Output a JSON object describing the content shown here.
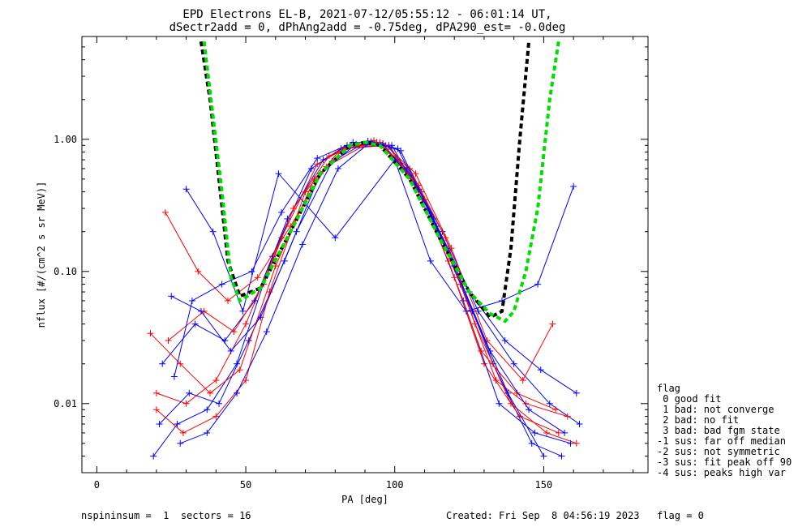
{
  "chart_data": {
    "type": "line",
    "title": "EPD Electrons EL-B, 2021-07-12/05:55:12 - 06:01:14 UT,",
    "subtitle": "dSectr2add = 0, dPhAng2add = -0.75deg, dPA290_est=  -0.0deg",
    "xlabel": "PA [deg]",
    "ylabel": "nflux [#/(cm^2 s sr MeV)]",
    "xlim": [
      -5,
      185
    ],
    "ylim": [
      0.003,
      6.0
    ],
    "yscale": "log",
    "x_ticks": [
      "0",
      "50",
      "100",
      "150"
    ],
    "x_tick_values": [
      0,
      50,
      100,
      150
    ],
    "y_ticks": [
      "0.01",
      "0.10",
      "1.00"
    ],
    "y_tick_values": [
      0.01,
      0.1,
      1.0
    ],
    "legend_title": "flag",
    "legend": [
      " 0 good fit",
      " 1 bad: not converge",
      " 2 bad: no fit",
      " 3 bad: bad fgm state",
      "-1 sus: far off median",
      "-2 sus: not symmetric",
      "-3 sus: fit peak off 90",
      "-4 sus: peaks high var"
    ],
    "footer_left": "nspininsum =  1  sectors = 16",
    "footer_right": "Created: Fri Sep  8 04:56:19 2023   flag = 0",
    "fit_curves": [
      {
        "color": "#000000",
        "style": "dashed",
        "x": [
          35,
          38,
          41,
          44,
          48,
          55,
          65,
          75,
          85,
          90,
          95,
          105,
          115,
          125,
          132,
          136,
          139,
          142,
          145
        ],
        "y": [
          5.5,
          2.0,
          0.5,
          0.12,
          0.065,
          0.075,
          0.2,
          0.55,
          0.9,
          0.95,
          0.9,
          0.5,
          0.18,
          0.07,
          0.045,
          0.05,
          0.15,
          1.0,
          5.5
        ]
      },
      {
        "color": "#00dd00",
        "style": "dashed",
        "x": [
          36,
          39,
          42,
          45,
          48,
          55,
          65,
          75,
          85,
          90,
          95,
          105,
          115,
          125,
          132,
          137,
          140,
          144,
          148,
          152,
          155
        ],
        "y": [
          5.5,
          1.5,
          0.4,
          0.09,
          0.06,
          0.075,
          0.2,
          0.55,
          0.9,
          0.95,
          0.9,
          0.5,
          0.18,
          0.07,
          0.048,
          0.042,
          0.05,
          0.1,
          0.3,
          2.0,
          5.5
        ]
      }
    ],
    "data_series": [
      {
        "color": "#0000ff",
        "markers": "plus",
        "x": [
          19,
          27,
          37,
          47,
          59,
          72,
          82,
          98,
          109,
          121,
          133,
          146,
          156
        ],
        "y": [
          0.004,
          0.007,
          0.009,
          0.02,
          0.13,
          0.6,
          0.85,
          0.9,
          0.4,
          0.1,
          0.02,
          0.005,
          0.004
        ]
      },
      {
        "color": "#ff0000",
        "markers": "plus",
        "x": [
          20,
          30,
          40,
          50,
          62,
          74,
          85,
          96,
          108,
          120,
          130,
          142,
          155
        ],
        "y": [
          0.012,
          0.01,
          0.015,
          0.04,
          0.18,
          0.65,
          0.9,
          0.92,
          0.45,
          0.09,
          0.02,
          0.008,
          0.006
        ]
      },
      {
        "color": "#0000ff",
        "markers": "plus",
        "x": [
          22,
          33,
          43,
          53,
          64,
          76,
          86,
          94,
          104,
          116,
          128,
          140,
          152,
          162
        ],
        "y": [
          0.02,
          0.04,
          0.03,
          0.06,
          0.25,
          0.7,
          0.95,
          0.95,
          0.6,
          0.2,
          0.05,
          0.02,
          0.01,
          0.007
        ]
      },
      {
        "color": "#ff0000",
        "markers": "plus",
        "x": [
          24,
          36,
          46,
          56,
          66,
          78,
          88,
          98,
          110,
          122,
          134,
          144,
          158
        ],
        "y": [
          0.03,
          0.05,
          0.035,
          0.08,
          0.3,
          0.75,
          0.9,
          0.88,
          0.35,
          0.08,
          0.015,
          0.01,
          0.008
        ]
      },
      {
        "color": "#0000ff",
        "markers": "plus",
        "x": [
          30,
          39,
          49,
          61,
          80,
          100,
          112,
          124,
          136,
          148,
          160
        ],
        "y": [
          0.42,
          0.2,
          0.05,
          0.55,
          0.18,
          0.7,
          0.12,
          0.05,
          0.06,
          0.08,
          0.44
        ]
      },
      {
        "color": "#0000ff",
        "markers": "plus",
        "x": [
          21,
          31,
          41,
          51,
          63,
          75,
          87,
          99,
          111,
          123,
          135,
          147,
          159
        ],
        "y": [
          0.007,
          0.012,
          0.01,
          0.03,
          0.12,
          0.55,
          0.92,
          0.9,
          0.3,
          0.06,
          0.01,
          0.006,
          0.005
        ]
      },
      {
        "color": "#ff0000",
        "markers": "plus",
        "x": [
          23,
          34,
          44,
          54,
          65,
          77,
          89,
          97,
          107,
          119,
          131,
          143,
          153
        ],
        "y": [
          0.28,
          0.1,
          0.06,
          0.09,
          0.22,
          0.62,
          0.88,
          0.9,
          0.55,
          0.15,
          0.03,
          0.015,
          0.04
        ]
      },
      {
        "color": "#0000ff",
        "markers": "plus",
        "x": [
          25,
          35,
          45,
          55,
          67,
          79,
          91,
          101,
          113,
          125,
          137,
          149,
          161
        ],
        "y": [
          0.065,
          0.05,
          0.025,
          0.045,
          0.2,
          0.68,
          0.97,
          0.85,
          0.25,
          0.07,
          0.03,
          0.018,
          0.012
        ]
      },
      {
        "color": "#ff0000",
        "markers": "plus",
        "x": [
          18,
          28,
          38,
          48,
          60,
          73,
          83,
          95,
          106,
          118,
          129,
          141,
          154
        ],
        "y": [
          0.034,
          0.02,
          0.012,
          0.018,
          0.11,
          0.5,
          0.85,
          0.95,
          0.5,
          0.12,
          0.025,
          0.012,
          0.009
        ]
      },
      {
        "color": "#0000ff",
        "markers": "plus",
        "x": [
          26,
          32,
          42,
          52,
          62,
          74,
          84,
          96,
          108,
          120,
          132,
          145,
          157
        ],
        "y": [
          0.016,
          0.06,
          0.08,
          0.1,
          0.28,
          0.72,
          0.9,
          0.93,
          0.42,
          0.11,
          0.025,
          0.009,
          0.006
        ]
      },
      {
        "color": "#ff0000",
        "markers": "plus",
        "x": [
          20,
          29,
          40,
          50,
          58,
          70,
          81,
          93,
          105,
          117,
          127,
          139,
          151,
          161
        ],
        "y": [
          0.009,
          0.006,
          0.008,
          0.015,
          0.07,
          0.4,
          0.8,
          0.98,
          0.6,
          0.18,
          0.04,
          0.01,
          0.006,
          0.005
        ]
      },
      {
        "color": "#0000ff",
        "markers": "plus",
        "x": [
          28,
          37,
          47,
          57,
          69,
          81,
          92,
          102,
          114,
          126,
          138,
          150
        ],
        "y": [
          0.005,
          0.006,
          0.012,
          0.035,
          0.16,
          0.6,
          0.96,
          0.82,
          0.22,
          0.05,
          0.012,
          0.004
        ]
      }
    ]
  },
  "colors": {
    "black_fit": "#000000",
    "green_fit": "#00dd00",
    "series_blue": "#0000ff",
    "series_red": "#ff0000"
  }
}
